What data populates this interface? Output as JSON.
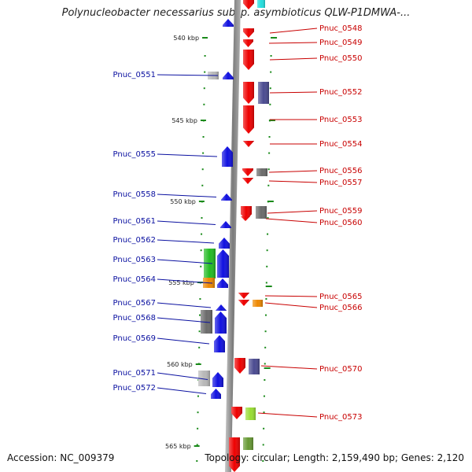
{
  "title": "Polynucleobacter necessarius subsp. asymbioticus QLW-P1DMWA-...",
  "footer": {
    "accession": "Accession: NC_009379",
    "summary": "Topology: circular; Length: 2,159,490 bp; Genes: 2,120"
  },
  "colors": {
    "backbone": "#8a8a8a",
    "left_label": "#0a10a0",
    "right_label": "#c80000",
    "tick": "#1a8a1a",
    "red": "#ee0000",
    "blue": "#1010e0",
    "gray": "#6a6a6a",
    "lightgray": "#b8b8b8",
    "navy": "#4a4a90",
    "green": "#22bb22",
    "orange": "#ee8800",
    "yellowgreen": "#99dd33",
    "olive": "#669933",
    "cyan": "#22dddd"
  },
  "kbp_ticks": [
    "540 kbp",
    "545 kbp",
    "550 kbp",
    "555 kbp",
    "560 kbp",
    "565 kbp"
  ],
  "genes": [
    {
      "label": "",
      "side": "right",
      "strand": "+",
      "color": "red"
    },
    {
      "label": "",
      "side": "right",
      "strand": "+",
      "color": "cyan"
    },
    {
      "label": "",
      "side": "left",
      "strand": "-",
      "color": "blue"
    },
    {
      "label": "Pnuc_0548",
      "side": "right",
      "strand": "+",
      "color": "red"
    },
    {
      "label": "Pnuc_0549",
      "side": "right",
      "strand": "+",
      "color": "red"
    },
    {
      "label": "Pnuc_0550",
      "side": "right",
      "strand": "+",
      "color": "red"
    },
    {
      "label": "Pnuc_0551",
      "side": "left",
      "strand": "-",
      "color": "blue"
    },
    {
      "label": "",
      "side": "left",
      "strand": "-",
      "color": "lightgray"
    },
    {
      "label": "Pnuc_0552",
      "side": "right",
      "strand": "+",
      "color": "red"
    },
    {
      "label": "",
      "side": "right",
      "strand": "+",
      "color": "navy"
    },
    {
      "label": "Pnuc_0553",
      "side": "right",
      "strand": "+",
      "color": "red"
    },
    {
      "label": "Pnuc_0554",
      "side": "right",
      "strand": "+",
      "color": "red"
    },
    {
      "label": "Pnuc_0555",
      "side": "left",
      "strand": "-",
      "color": "blue"
    },
    {
      "label": "Pnuc_0556",
      "side": "right",
      "strand": "+",
      "color": "red"
    },
    {
      "label": "",
      "side": "right",
      "strand": "+",
      "color": "gray"
    },
    {
      "label": "Pnuc_0557",
      "side": "right",
      "strand": "+",
      "color": "red"
    },
    {
      "label": "Pnuc_0558",
      "side": "left",
      "strand": "-",
      "color": "blue"
    },
    {
      "label": "Pnuc_0559",
      "side": "right",
      "strand": "+",
      "color": "red"
    },
    {
      "label": "",
      "side": "right",
      "strand": "+",
      "color": "gray"
    },
    {
      "label": "Pnuc_0560",
      "side": "right",
      "strand": "+",
      "color": "red"
    },
    {
      "label": "Pnuc_0561",
      "side": "left",
      "strand": "-",
      "color": "blue"
    },
    {
      "label": "Pnuc_0562",
      "side": "left",
      "strand": "-",
      "color": "blue"
    },
    {
      "label": "Pnuc_0563",
      "side": "left",
      "strand": "-",
      "color": "blue"
    },
    {
      "label": "",
      "side": "left",
      "strand": "-",
      "color": "green"
    },
    {
      "label": "Pnuc_0564",
      "side": "left",
      "strand": "-",
      "color": "blue"
    },
    {
      "label": "",
      "side": "left",
      "strand": "-",
      "color": "orange"
    },
    {
      "label": "Pnuc_0565",
      "side": "right",
      "strand": "+",
      "color": "red"
    },
    {
      "label": "Pnuc_0566",
      "side": "right",
      "strand": "+",
      "color": "red"
    },
    {
      "label": "",
      "side": "right",
      "strand": "+",
      "color": "orange"
    },
    {
      "label": "Pnuc_0567",
      "side": "left",
      "strand": "-",
      "color": "blue"
    },
    {
      "label": "Pnuc_0568",
      "side": "left",
      "strand": "-",
      "color": "blue"
    },
    {
      "label": "",
      "side": "left",
      "strand": "-",
      "color": "gray"
    },
    {
      "label": "Pnuc_0569",
      "side": "left",
      "strand": "-",
      "color": "blue"
    },
    {
      "label": "Pnuc_0570",
      "side": "right",
      "strand": "+",
      "color": "red"
    },
    {
      "label": "",
      "side": "right",
      "strand": "+",
      "color": "navy"
    },
    {
      "label": "Pnuc_0571",
      "side": "left",
      "strand": "-",
      "color": "blue"
    },
    {
      "label": "",
      "side": "left",
      "strand": "-",
      "color": "lightgray"
    },
    {
      "label": "Pnuc_0572",
      "side": "left",
      "strand": "-",
      "color": "blue"
    },
    {
      "label": "Pnuc_0573",
      "side": "right",
      "strand": "+",
      "color": "red"
    },
    {
      "label": "",
      "side": "right",
      "strand": "+",
      "color": "yellowgreen"
    },
    {
      "label": "",
      "side": "right",
      "strand": "+",
      "color": "red"
    },
    {
      "label": "",
      "side": "right",
      "strand": "+",
      "color": "olive"
    }
  ]
}
